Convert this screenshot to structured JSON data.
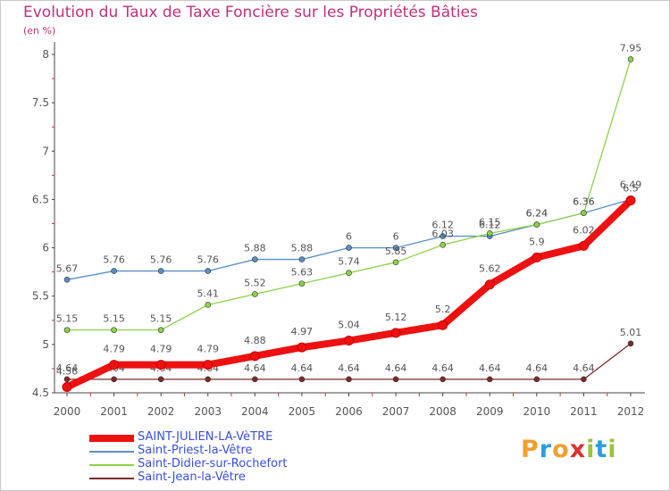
{
  "title": "Evolution du Taux de Taxe Foncière sur les Propriétés Bâties",
  "unit": "(en %)",
  "logo": {
    "letters": [
      "P",
      "r",
      "o",
      "x",
      "i",
      "t",
      "i"
    ],
    "colors": [
      "#f0a030",
      "#2e9ed8",
      "#f0a030",
      "#e03030",
      "#9ec23c",
      "#2e9ed8",
      "#9ec23c"
    ]
  },
  "chart_data": {
    "type": "line",
    "x": [
      "2000",
      "2001",
      "2002",
      "2003",
      "2004",
      "2005",
      "2006",
      "2007",
      "2008",
      "2009",
      "2010",
      "2011",
      "2012"
    ],
    "ylim": [
      4.5,
      8
    ],
    "yticks": [
      "4.5",
      "5",
      "5.5",
      "6",
      "6.5",
      "7",
      "7.5",
      "8"
    ],
    "grid": false,
    "legend_position": "bottom-left",
    "series": [
      {
        "name": "Saint-Jean-la-Vêtre",
        "color": "#7a2a2a",
        "thick": false,
        "values": [
          4.64,
          4.64,
          4.64,
          4.64,
          4.64,
          4.64,
          4.64,
          4.64,
          4.64,
          4.64,
          4.64,
          4.64,
          5.01
        ],
        "labels": [
          "4.64",
          "4.64",
          "4.64",
          "4.64",
          "4.64",
          "4.64",
          "4.64",
          "4.64",
          "4.64",
          "4.64",
          "4.64",
          "4.64",
          "5.01"
        ]
      },
      {
        "name": "Saint-Priest-la-Vêtre",
        "color": "#5b8fc5",
        "thick": false,
        "values": [
          5.67,
          5.76,
          5.76,
          5.76,
          5.88,
          5.88,
          6.0,
          6.0,
          6.12,
          6.12,
          6.24,
          6.36,
          6.5
        ],
        "labels": [
          "5.67",
          "5.76",
          "5.76",
          "5.76",
          "5.88",
          "5.88",
          "6",
          "6",
          "6.12",
          "6.12",
          "6.24",
          "6.36",
          "6.5"
        ]
      },
      {
        "name": "Saint-Didier-sur-Rochefort",
        "color": "#8cd24a",
        "thick": false,
        "values": [
          5.15,
          5.15,
          5.15,
          5.41,
          5.52,
          5.63,
          5.74,
          5.85,
          6.03,
          6.15,
          6.24,
          6.36,
          7.95
        ],
        "labels": [
          "5.15",
          "5.15",
          "5.15",
          "5.41",
          "5.52",
          "5.63",
          "5.74",
          "5.85",
          "6.03",
          "6.15",
          "6.24",
          "6.36",
          "7.95"
        ]
      },
      {
        "name": "SAINT-JULIEN-LA-VèTRE",
        "color": "#ee1111",
        "thick": true,
        "values": [
          4.56,
          4.79,
          4.79,
          4.79,
          4.88,
          4.97,
          5.04,
          5.12,
          5.2,
          5.62,
          5.9,
          6.02,
          6.49
        ],
        "labels": [
          "4.56",
          "4.79",
          "4.79",
          "4.79",
          "4.88",
          "4.97",
          "5.04",
          "5.12",
          "5.2",
          "5.62",
          "5.9",
          "6.02",
          "6.49"
        ]
      }
    ],
    "legend_order": [
      3,
      1,
      2,
      0
    ]
  }
}
